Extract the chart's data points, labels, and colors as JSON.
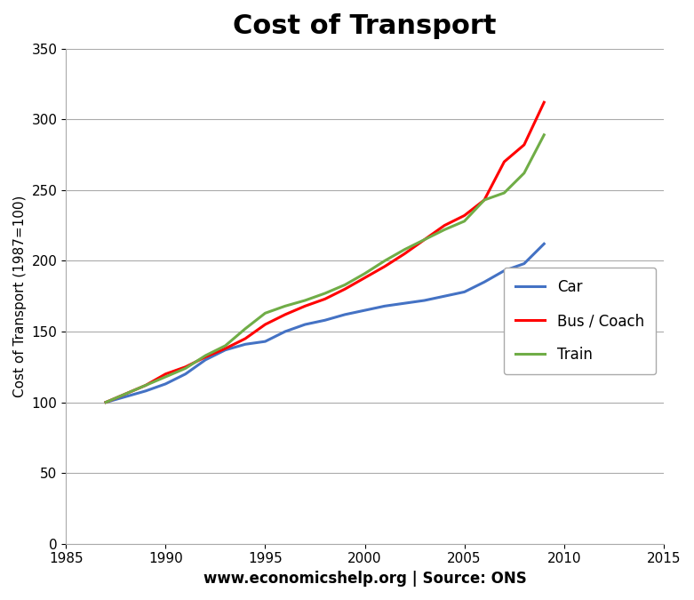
{
  "title": "Cost of Transport",
  "ylabel": "Cost of Transport (1987=100)",
  "xlabel": "www.economicshelp.org | Source: ONS",
  "xlim": [
    1985,
    2015
  ],
  "ylim": [
    0,
    350
  ],
  "xticks": [
    1985,
    1990,
    1995,
    2000,
    2005,
    2010,
    2015
  ],
  "yticks": [
    0,
    50,
    100,
    150,
    200,
    250,
    300,
    350
  ],
  "car": {
    "label": "Car",
    "color": "#4472C4",
    "years": [
      1987,
      1988,
      1989,
      1990,
      1991,
      1992,
      1993,
      1994,
      1995,
      1996,
      1997,
      1998,
      1999,
      2000,
      2001,
      2002,
      2003,
      2004,
      2005,
      2006,
      2007,
      2008,
      2009
    ],
    "values": [
      100,
      104,
      108,
      113,
      120,
      130,
      137,
      141,
      143,
      150,
      155,
      158,
      162,
      165,
      168,
      170,
      172,
      175,
      178,
      185,
      193,
      198,
      212
    ]
  },
  "bus": {
    "label": "Bus / Coach",
    "color": "#FF0000",
    "years": [
      1987,
      1988,
      1989,
      1990,
      1991,
      1992,
      1993,
      1994,
      1995,
      1996,
      1997,
      1998,
      1999,
      2000,
      2001,
      2002,
      2003,
      2004,
      2005,
      2006,
      2007,
      2008,
      2009
    ],
    "values": [
      100,
      106,
      112,
      120,
      125,
      132,
      138,
      145,
      155,
      162,
      168,
      173,
      180,
      188,
      196,
      205,
      215,
      225,
      232,
      243,
      270,
      282,
      312
    ]
  },
  "train": {
    "label": "Train",
    "color": "#70AD47",
    "years": [
      1987,
      1988,
      1989,
      1990,
      1991,
      1992,
      1993,
      1994,
      1995,
      1996,
      1997,
      1998,
      1999,
      2000,
      2001,
      2002,
      2003,
      2004,
      2005,
      2006,
      2007,
      2008,
      2009
    ],
    "values": [
      100,
      106,
      112,
      118,
      124,
      133,
      140,
      152,
      163,
      168,
      172,
      177,
      183,
      191,
      200,
      208,
      215,
      222,
      228,
      243,
      248,
      262,
      289
    ]
  },
  "background_color": "#FFFFFF",
  "title_fontsize": 22,
  "axis_fontsize": 11,
  "legend_fontsize": 12,
  "line_width": 2.2
}
